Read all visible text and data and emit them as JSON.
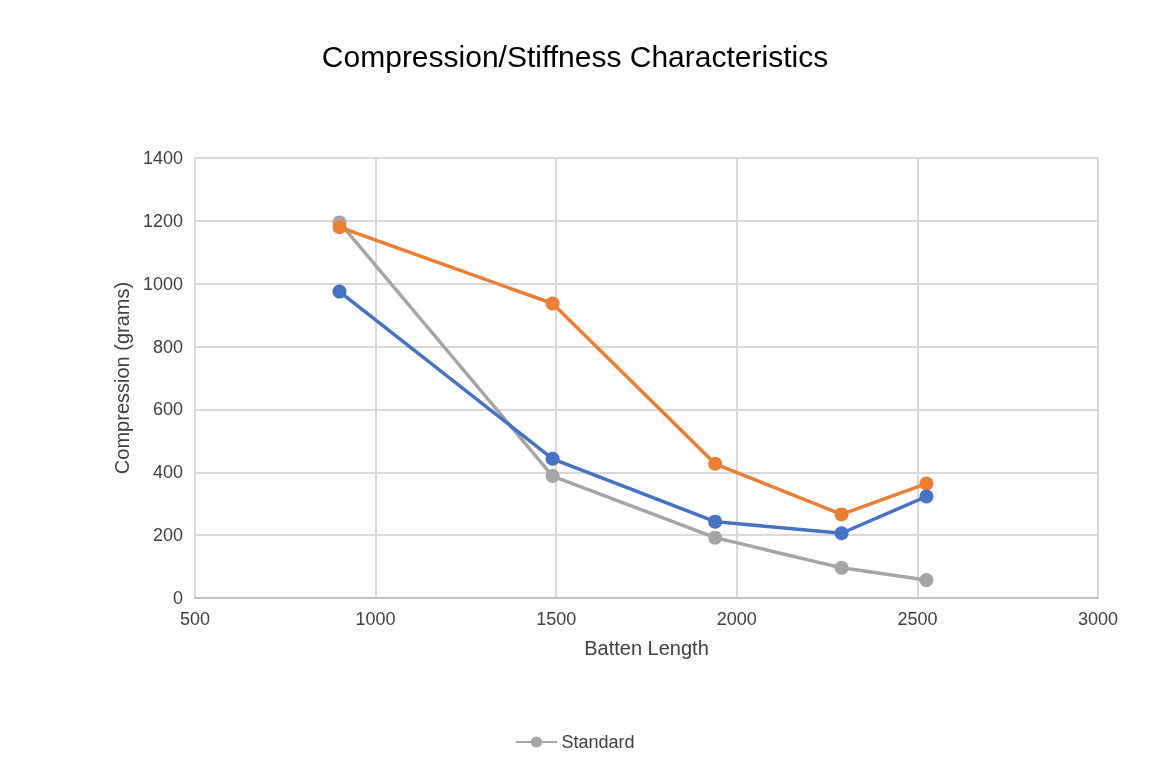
{
  "chart_data": {
    "type": "line",
    "title": "Compression/Stiffness Characteristics",
    "xlabel": "Batten Length",
    "ylabel": "Compression (grams)",
    "x": [
      900,
      1490,
      1940,
      2290,
      2525
    ],
    "series": [
      {
        "color": "#4472c4",
        "values": [
          975,
          443,
          243,
          206,
          323
        ]
      },
      {
        "color": "#ed7d31",
        "values": [
          1180,
          937,
          427,
          266,
          364
        ]
      },
      {
        "name": "Standard",
        "color": "#a5a5a5",
        "values": [
          1195,
          388,
          192,
          96,
          57
        ]
      }
    ],
    "xlim": [
      500,
      3000
    ],
    "xticks": [
      500,
      1000,
      1500,
      2000,
      2500,
      3000
    ],
    "ylim": [
      0,
      1400
    ],
    "yticks": [
      0,
      200,
      400,
      600,
      800,
      1000,
      1200,
      1400
    ],
    "grid": true,
    "legend": "bottom",
    "marker": "circle",
    "line_style": "solid"
  }
}
